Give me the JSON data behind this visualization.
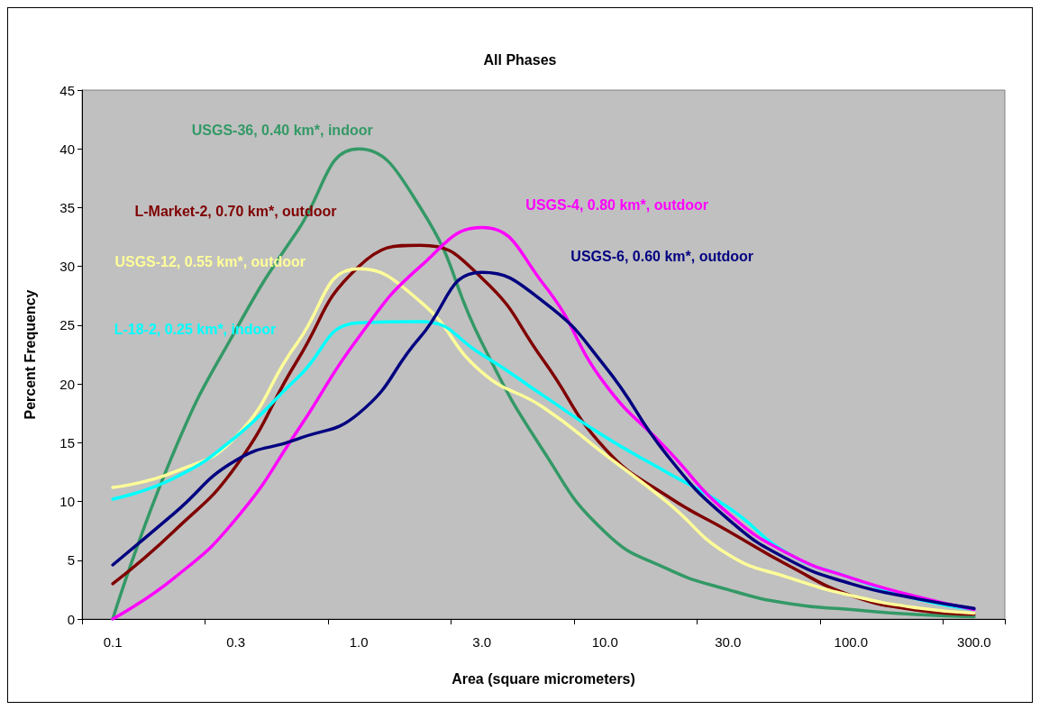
{
  "chart_data": {
    "type": "line",
    "title": "All Phases",
    "xlabel": "Area (square micrometers)",
    "ylabel": "Percent Frequency",
    "categories": [
      "0.1",
      null,
      "0.3",
      null,
      "1.0",
      null,
      "3.0",
      null,
      "10.0",
      null,
      "30.0",
      null,
      "100.0",
      null,
      "300.0"
    ],
    "series": [
      {
        "name": "USGS-36, 0.40 km*, indoor",
        "color": "#339966",
        "values": [
          0,
          14.3,
          24.6,
          33,
          40,
          35,
          23.5,
          14.3,
          7.4,
          4.3,
          2.5,
          1.3,
          0.8,
          0.4,
          0.2
        ]
      },
      {
        "name": "L-Market-2, 0.70 km*, outdoor",
        "color": "#800000",
        "values": [
          3,
          7.5,
          13,
          22,
          30,
          31.8,
          29,
          22,
          14.5,
          10.5,
          7.5,
          4.5,
          2,
          0.8,
          0.4
        ]
      },
      {
        "name": "USGS-12, 0.55 km*, outdoor",
        "color": "#ffff99",
        "values": [
          11.2,
          12.5,
          15.5,
          23.5,
          29.8,
          27,
          21,
          18,
          14,
          10,
          5.5,
          3.5,
          2,
          1,
          0.5
        ]
      },
      {
        "name": "L-18-2, 0.25 km*, indoor",
        "color": "#00ffff",
        "values": [
          10.2,
          12,
          15.5,
          20.5,
          25.2,
          25.3,
          22.5,
          19,
          15.5,
          12.5,
          9.5,
          5.5,
          3.5,
          1.8,
          0.8
        ]
      },
      {
        "name": "USGS-4, 0.80 km*, outdoor",
        "color": "#ff00ff",
        "values": [
          0,
          3.5,
          8.5,
          16,
          24,
          30,
          33.3,
          28.5,
          20,
          14.5,
          9,
          5.5,
          3.5,
          2,
          0.8
        ]
      },
      {
        "name": "USGS-6, 0.60 km*, outdoor",
        "color": "#000080",
        "values": [
          4.6,
          9,
          13.5,
          15.3,
          17.5,
          24,
          29.5,
          27,
          21.5,
          14,
          8.5,
          5,
          3,
          1.8,
          0.9
        ]
      }
    ],
    "ylim": [
      0,
      45
    ],
    "yticks": [
      0,
      5,
      10,
      15,
      20,
      25,
      30,
      35,
      40,
      45
    ],
    "grid": false,
    "legend": false,
    "marker": "none",
    "line_style": "solid"
  }
}
